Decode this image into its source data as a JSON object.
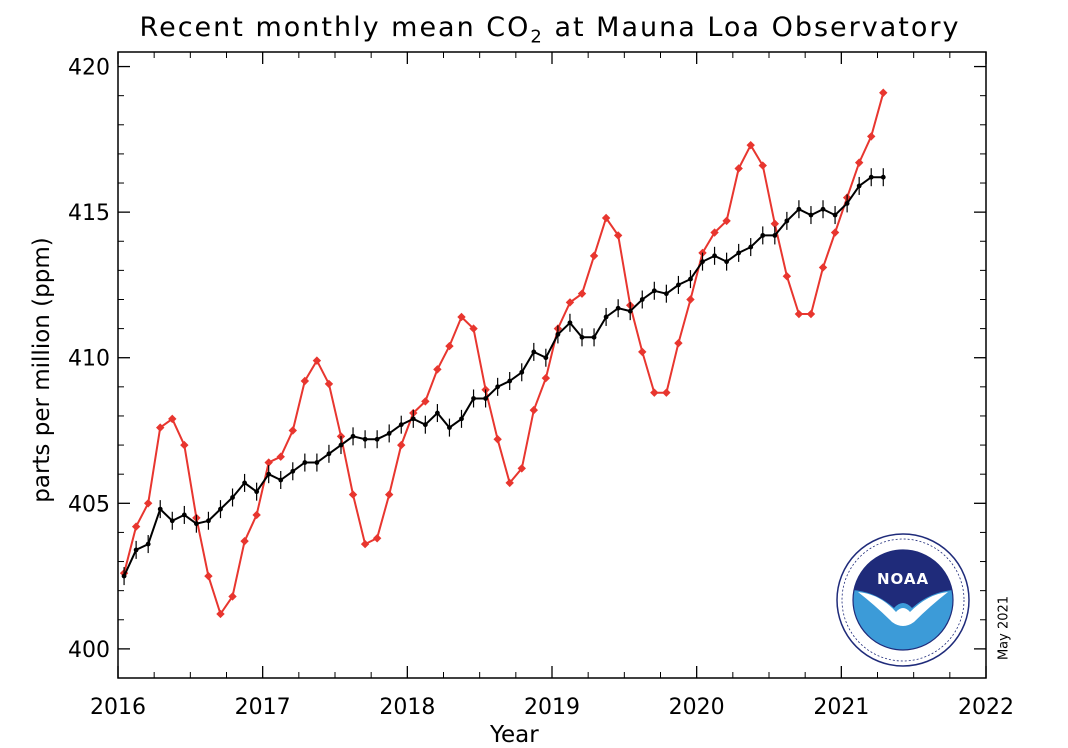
{
  "title": {
    "prefix": "Recent monthly mean CO",
    "subscript": "2",
    "suffix": " at Mauna Loa Observatory"
  },
  "date_label": "May 2021",
  "logo": {
    "text": "NOAA",
    "ring_text": "NATIONAL OCEANIC AND ATMOSPHERIC ADMINISTRATION · U.S. DEPARTMENT OF COMMERCE"
  },
  "colors": {
    "monthly": "#e8362f",
    "trend": "#000000",
    "axis": "#000000",
    "logo_dark": "#1f2b7a",
    "logo_light": "#3c9bd8"
  },
  "chart_data": {
    "type": "line",
    "title": "Recent monthly mean CO2 at Mauna Loa Observatory",
    "xlabel": "Year",
    "ylabel": "parts per million (ppm)",
    "xlim": [
      2016,
      2022
    ],
    "ylim": [
      399,
      420.5
    ],
    "xticks": [
      2016,
      2017,
      2018,
      2019,
      2020,
      2021,
      2022
    ],
    "yticks": [
      400,
      405,
      410,
      415,
      420
    ],
    "grid": false,
    "legend": "none",
    "series": [
      {
        "role": "monthly mean",
        "color": "#e8362f",
        "marker": "diamond",
        "x_start": 2016.042,
        "x_step": 0.0833,
        "values": [
          402.6,
          404.2,
          405.0,
          407.6,
          407.9,
          407.0,
          404.5,
          402.5,
          401.2,
          401.8,
          403.7,
          404.6,
          406.4,
          406.6,
          407.5,
          409.2,
          409.9,
          409.1,
          407.3,
          405.3,
          403.6,
          403.8,
          405.3,
          407.0,
          408.1,
          408.5,
          409.6,
          410.4,
          411.4,
          411.0,
          408.9,
          407.2,
          405.7,
          406.2,
          408.2,
          409.3,
          411.0,
          411.9,
          412.2,
          413.5,
          414.8,
          414.2,
          411.8,
          410.2,
          408.8,
          408.8,
          410.5,
          412.0,
          413.6,
          414.3,
          414.7,
          416.5,
          417.3,
          416.6,
          414.6,
          412.8,
          411.5,
          411.5,
          413.1,
          414.3,
          415.5,
          416.7,
          417.6,
          419.1
        ]
      },
      {
        "role": "seasonally corrected trend",
        "color": "#000000",
        "marker": "dot with error bars",
        "x_start": 2016.042,
        "x_step": 0.0833,
        "values": [
          402.5,
          403.4,
          403.6,
          404.8,
          404.4,
          404.6,
          404.3,
          404.4,
          404.8,
          405.2,
          405.7,
          405.4,
          406.0,
          405.8,
          406.1,
          406.4,
          406.4,
          406.7,
          407.0,
          407.3,
          407.2,
          407.2,
          407.4,
          407.7,
          407.9,
          407.7,
          408.1,
          407.6,
          407.9,
          408.6,
          408.6,
          409.0,
          409.2,
          409.5,
          410.2,
          410.0,
          410.8,
          411.2,
          410.7,
          410.7,
          411.4,
          411.7,
          411.6,
          412.0,
          412.3,
          412.2,
          412.5,
          412.7,
          413.3,
          413.5,
          413.3,
          413.6,
          413.8,
          414.2,
          414.2,
          414.7,
          415.1,
          414.9,
          415.1,
          414.9,
          415.3,
          415.9,
          416.2,
          416.2
        ]
      }
    ]
  }
}
